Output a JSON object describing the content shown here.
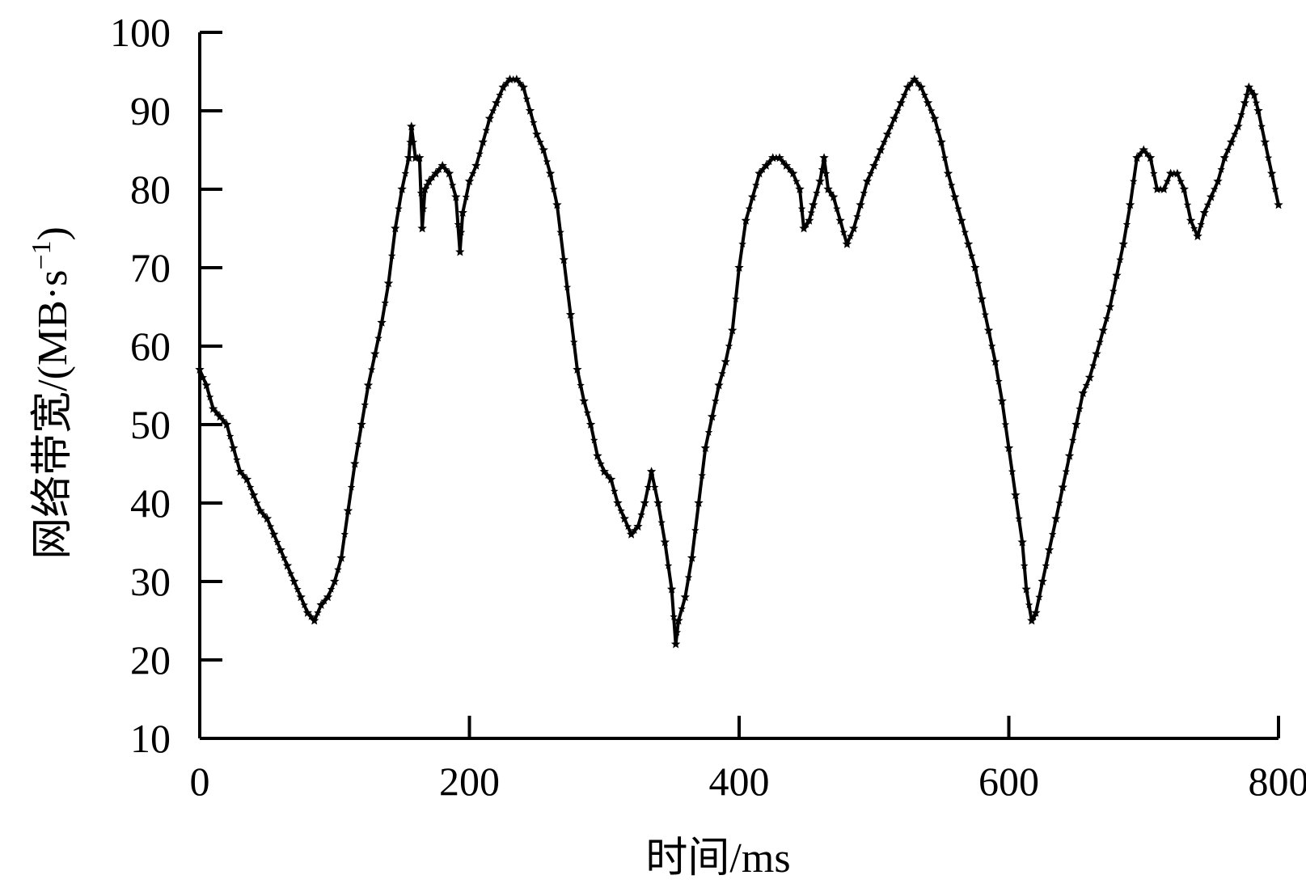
{
  "chart_data": {
    "type": "line",
    "title": "",
    "xlabel": "时间/ms",
    "ylabel": "网络带宽/(MB·s",
    "ylabel_sup": "−1",
    "ylabel_tail": ")",
    "xlim": [
      0,
      800
    ],
    "ylim": [
      10,
      100
    ],
    "x_ticks": [
      0,
      200,
      400,
      600,
      800
    ],
    "x_tick_labels": [
      "0",
      "200",
      "400",
      "600",
      "800"
    ],
    "y_ticks": [
      10,
      20,
      30,
      40,
      50,
      60,
      70,
      80,
      90,
      100
    ],
    "y_tick_labels": [
      "10",
      "20",
      "30",
      "40",
      "50",
      "60",
      "70",
      "80",
      "90",
      "100"
    ],
    "grid": false,
    "legend": "none",
    "line_color": "#000000",
    "marker": "star",
    "series": [
      {
        "points": [
          [
            0,
            57
          ],
          [
            5,
            55
          ],
          [
            10,
            52
          ],
          [
            15,
            51
          ],
          [
            20,
            50
          ],
          [
            25,
            47
          ],
          [
            30,
            44
          ],
          [
            35,
            43
          ],
          [
            40,
            41
          ],
          [
            45,
            39
          ],
          [
            50,
            38
          ],
          [
            55,
            36
          ],
          [
            60,
            34
          ],
          [
            65,
            32
          ],
          [
            70,
            30
          ],
          [
            75,
            28
          ],
          [
            80,
            26
          ],
          [
            85,
            25
          ],
          [
            90,
            27
          ],
          [
            95,
            28
          ],
          [
            100,
            30
          ],
          [
            105,
            33
          ],
          [
            110,
            39
          ],
          [
            115,
            45
          ],
          [
            120,
            50
          ],
          [
            125,
            55
          ],
          [
            130,
            59
          ],
          [
            135,
            63
          ],
          [
            140,
            68
          ],
          [
            145,
            75
          ],
          [
            150,
            80
          ],
          [
            155,
            84
          ],
          [
            157,
            88
          ],
          [
            160,
            84
          ],
          [
            163,
            84
          ],
          [
            165,
            75
          ],
          [
            167,
            80
          ],
          [
            170,
            81
          ],
          [
            175,
            82
          ],
          [
            180,
            83
          ],
          [
            185,
            82
          ],
          [
            190,
            79
          ],
          [
            193,
            72
          ],
          [
            195,
            77
          ],
          [
            200,
            81
          ],
          [
            205,
            83
          ],
          [
            210,
            86
          ],
          [
            215,
            89
          ],
          [
            220,
            91
          ],
          [
            225,
            93
          ],
          [
            230,
            94
          ],
          [
            235,
            94
          ],
          [
            240,
            93
          ],
          [
            245,
            90
          ],
          [
            250,
            87
          ],
          [
            255,
            85
          ],
          [
            260,
            82
          ],
          [
            265,
            78
          ],
          [
            270,
            71
          ],
          [
            275,
            64
          ],
          [
            280,
            57
          ],
          [
            285,
            53
          ],
          [
            290,
            50
          ],
          [
            295,
            46
          ],
          [
            300,
            44
          ],
          [
            305,
            43
          ],
          [
            310,
            40
          ],
          [
            315,
            38
          ],
          [
            320,
            36
          ],
          [
            325,
            37
          ],
          [
            330,
            40
          ],
          [
            335,
            44
          ],
          [
            340,
            40
          ],
          [
            345,
            35
          ],
          [
            350,
            29
          ],
          [
            353,
            22
          ],
          [
            355,
            25
          ],
          [
            360,
            28
          ],
          [
            365,
            33
          ],
          [
            370,
            40
          ],
          [
            375,
            47
          ],
          [
            380,
            51
          ],
          [
            385,
            55
          ],
          [
            390,
            58
          ],
          [
            395,
            62
          ],
          [
            400,
            70
          ],
          [
            405,
            76
          ],
          [
            410,
            79
          ],
          [
            415,
            82
          ],
          [
            420,
            83
          ],
          [
            425,
            84
          ],
          [
            430,
            84
          ],
          [
            435,
            83
          ],
          [
            440,
            82
          ],
          [
            445,
            80
          ],
          [
            448,
            75
          ],
          [
            452,
            76
          ],
          [
            455,
            78
          ],
          [
            460,
            81
          ],
          [
            463,
            84
          ],
          [
            466,
            80
          ],
          [
            470,
            79
          ],
          [
            475,
            76
          ],
          [
            480,
            73
          ],
          [
            485,
            75
          ],
          [
            490,
            78
          ],
          [
            495,
            81
          ],
          [
            500,
            83
          ],
          [
            505,
            85
          ],
          [
            510,
            87
          ],
          [
            515,
            89
          ],
          [
            520,
            91
          ],
          [
            525,
            93
          ],
          [
            530,
            94
          ],
          [
            535,
            93
          ],
          [
            540,
            91
          ],
          [
            545,
            89
          ],
          [
            550,
            86
          ],
          [
            555,
            82
          ],
          [
            560,
            79
          ],
          [
            565,
            76
          ],
          [
            570,
            73
          ],
          [
            575,
            70
          ],
          [
            580,
            66
          ],
          [
            585,
            62
          ],
          [
            590,
            58
          ],
          [
            595,
            53
          ],
          [
            600,
            47
          ],
          [
            605,
            41
          ],
          [
            610,
            35
          ],
          [
            613,
            29
          ],
          [
            617,
            25
          ],
          [
            620,
            26
          ],
          [
            625,
            30
          ],
          [
            630,
            34
          ],
          [
            635,
            38
          ],
          [
            640,
            42
          ],
          [
            645,
            46
          ],
          [
            650,
            50
          ],
          [
            655,
            54
          ],
          [
            660,
            56
          ],
          [
            665,
            59
          ],
          [
            670,
            62
          ],
          [
            675,
            65
          ],
          [
            680,
            69
          ],
          [
            685,
            73
          ],
          [
            690,
            78
          ],
          [
            695,
            84
          ],
          [
            700,
            85
          ],
          [
            705,
            84
          ],
          [
            710,
            80
          ],
          [
            715,
            80
          ],
          [
            720,
            82
          ],
          [
            725,
            82
          ],
          [
            730,
            80
          ],
          [
            735,
            76
          ],
          [
            740,
            74
          ],
          [
            745,
            77
          ],
          [
            750,
            79
          ],
          [
            755,
            81
          ],
          [
            760,
            84
          ],
          [
            765,
            86
          ],
          [
            770,
            88
          ],
          [
            775,
            91
          ],
          [
            778,
            93
          ],
          [
            782,
            92
          ],
          [
            785,
            90
          ],
          [
            790,
            86
          ],
          [
            795,
            82
          ],
          [
            800,
            78
          ]
        ]
      }
    ]
  }
}
